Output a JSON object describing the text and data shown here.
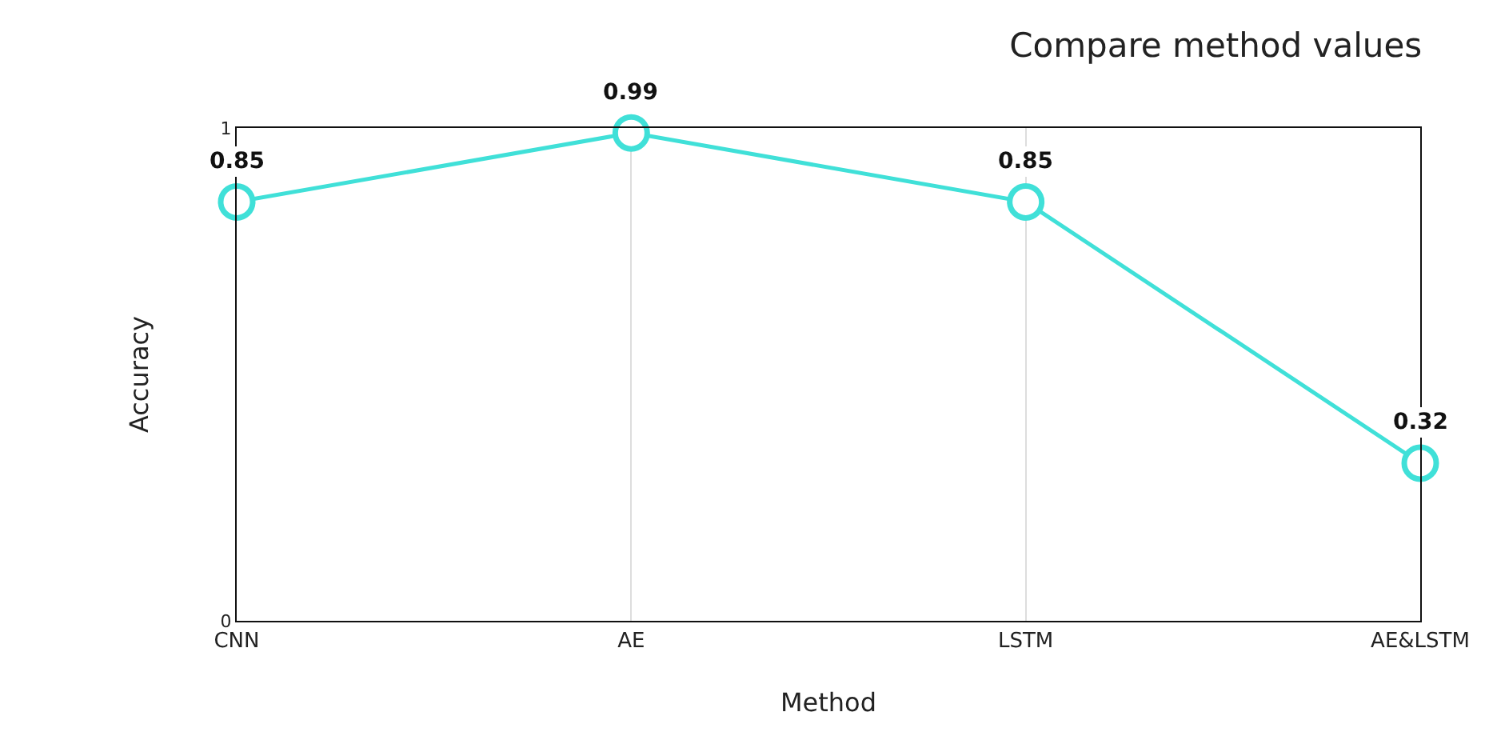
{
  "chart_data": {
    "type": "line",
    "title": "Compare method values",
    "xlabel": "Method",
    "ylabel": "Accuracy",
    "categories": [
      "CNN",
      "AE",
      "LSTM",
      "AE&LSTM"
    ],
    "series": [
      {
        "color": "#40e0d8",
        "values": [
          0.85,
          0.99,
          0.85,
          0.32
        ]
      }
    ],
    "ylim": [
      0,
      1
    ],
    "yticks": [
      0,
      1
    ],
    "grid": "x",
    "marker": "circle",
    "line_style": "solid",
    "data_labels": true,
    "legend": false
  }
}
